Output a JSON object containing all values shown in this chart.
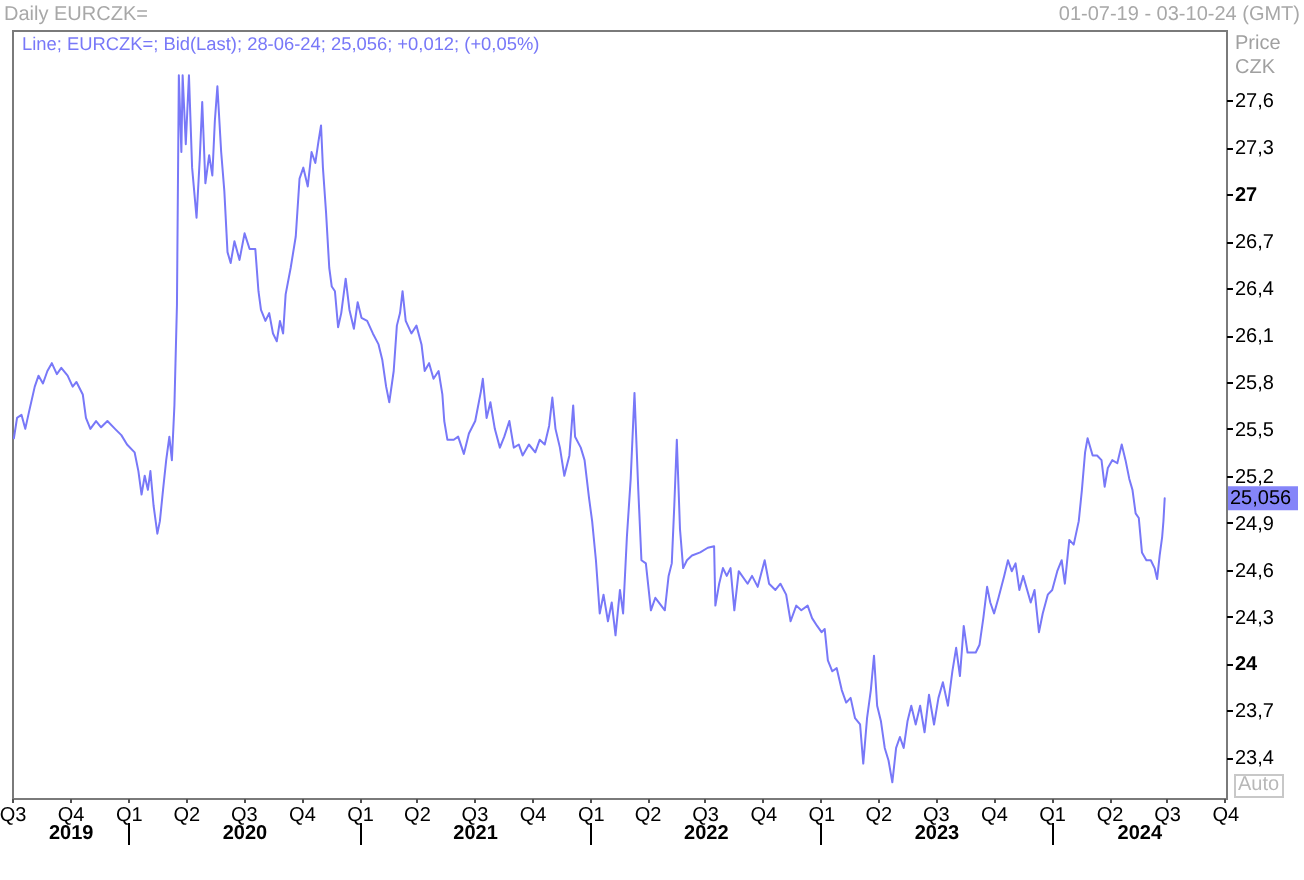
{
  "chart_data": {
    "type": "line",
    "title": "Daily EURCZK=",
    "subtitle": "01-07-19 - 03-10-24 (GMT)",
    "ylabel": "Price CZK",
    "x": [
      "2019-07-04",
      "2019-07-09",
      "2019-07-16",
      "2019-07-22",
      "2019-07-28",
      "2019-08-06",
      "2019-08-12",
      "2019-08-19",
      "2019-08-26",
      "2019-09-02",
      "2019-09-10",
      "2019-09-17",
      "2019-09-27",
      "2019-10-05",
      "2019-10-11",
      "2019-10-21",
      "2019-10-26",
      "2019-11-02",
      "2019-11-11",
      "2019-11-19",
      "2019-11-29",
      "2019-12-11",
      "2019-12-21",
      "2019-12-30",
      "2020-01-11",
      "2020-01-17",
      "2020-01-22",
      "2020-01-27",
      "2020-02-01",
      "2020-02-05",
      "2020-02-10",
      "2020-02-16",
      "2020-02-20",
      "2020-02-25",
      "2020-03-01",
      "2020-03-06",
      "2020-03-10",
      "2020-03-14",
      "2020-03-18",
      "2020-03-21",
      "2020-03-25",
      "2020-03-27",
      "2020-04-01",
      "2020-04-06",
      "2020-04-11",
      "2020-04-18",
      "2020-04-23",
      "2020-04-27",
      "2020-05-02",
      "2020-05-08",
      "2020-05-13",
      "2020-05-17",
      "2020-05-21",
      "2020-05-27",
      "2020-06-01",
      "2020-06-06",
      "2020-06-11",
      "2020-06-17",
      "2020-06-25",
      "2020-07-03",
      "2020-07-11",
      "2020-07-20",
      "2020-07-25",
      "2020-07-29",
      "2020-08-05",
      "2020-08-11",
      "2020-08-17",
      "2020-08-23",
      "2020-08-28",
      "2020-09-02",
      "2020-09-06",
      "2020-09-14",
      "2020-09-22",
      "2020-09-28",
      "2020-10-04",
      "2020-10-11",
      "2020-10-17",
      "2020-10-23",
      "2020-10-28",
      "2020-11-01",
      "2020-11-04",
      "2020-11-09",
      "2020-11-14",
      "2020-11-18",
      "2020-11-23",
      "2020-11-28",
      "2020-12-03",
      "2020-12-10",
      "2020-12-16",
      "2020-12-23",
      "2020-12-29",
      "2021-01-04",
      "2021-01-13",
      "2021-01-22",
      "2021-01-31",
      "2021-02-06",
      "2021-02-12",
      "2021-02-17",
      "2021-02-24",
      "2021-03-01",
      "2021-03-06",
      "2021-03-10",
      "2021-03-15",
      "2021-03-24",
      "2021-04-01",
      "2021-04-09",
      "2021-04-14",
      "2021-04-21",
      "2021-04-28",
      "2021-05-06",
      "2021-05-12",
      "2021-05-15",
      "2021-05-20",
      "2021-05-30",
      "2021-06-06",
      "2021-06-15",
      "2021-06-23",
      "2021-07-03",
      "2021-07-12",
      "2021-07-15",
      "2021-07-21",
      "2021-07-27",
      "2021-08-03",
      "2021-08-11",
      "2021-08-18",
      "2021-08-26",
      "2021-09-02",
      "2021-09-10",
      "2021-09-16",
      "2021-09-26",
      "2021-10-06",
      "2021-10-13",
      "2021-10-21",
      "2021-10-28",
      "2021-11-02",
      "2021-11-07",
      "2021-11-14",
      "2021-11-21",
      "2021-11-29",
      "2021-12-05",
      "2021-12-08",
      "2021-12-17",
      "2021-12-23",
      "2021-12-30",
      "2022-01-04",
      "2022-01-10",
      "2022-01-16",
      "2022-01-22",
      "2022-01-29",
      "2022-02-04",
      "2022-02-10",
      "2022-02-17",
      "2022-02-22",
      "2022-02-28",
      "2022-03-06",
      "2022-03-12",
      "2022-03-18",
      "2022-03-23",
      "2022-03-30",
      "2022-04-07",
      "2022-04-14",
      "2022-04-29",
      "2022-05-05",
      "2022-05-10",
      "2022-05-14",
      "2022-05-18",
      "2022-05-23",
      "2022-05-28",
      "2022-06-03",
      "2022-06-11",
      "2022-06-24",
      "2022-07-06",
      "2022-07-16",
      "2022-07-18",
      "2022-07-24",
      "2022-07-30",
      "2022-08-05",
      "2022-08-11",
      "2022-08-17",
      "2022-08-24",
      "2022-09-07",
      "2022-09-14",
      "2022-09-23",
      "2022-10-04",
      "2022-10-11",
      "2022-10-21",
      "2022-10-29",
      "2022-11-07",
      "2022-11-14",
      "2022-11-23",
      "2022-12-01",
      "2022-12-11",
      "2022-12-18",
      "2022-12-26",
      "2023-01-02",
      "2023-01-07",
      "2023-01-12",
      "2023-01-19",
      "2023-01-26",
      "2023-02-03",
      "2023-02-10",
      "2023-02-17",
      "2023-02-24",
      "2023-03-04",
      "2023-03-09",
      "2023-03-15",
      "2023-03-21",
      "2023-03-26",
      "2023-03-31",
      "2023-04-06",
      "2023-04-12",
      "2023-04-18",
      "2023-04-24",
      "2023-04-30",
      "2023-05-06",
      "2023-05-12",
      "2023-05-18",
      "2023-05-24",
      "2023-05-31",
      "2023-06-07",
      "2023-06-14",
      "2023-06-21",
      "2023-06-29",
      "2023-07-06",
      "2023-07-13",
      "2023-07-21",
      "2023-07-28",
      "2023-08-03",
      "2023-08-09",
      "2023-08-15",
      "2023-08-21",
      "2023-09-03",
      "2023-09-09",
      "2023-09-15",
      "2023-09-21",
      "2023-09-26",
      "2023-10-02",
      "2023-10-09",
      "2023-10-18",
      "2023-10-24",
      "2023-10-30",
      "2023-11-05",
      "2023-11-11",
      "2023-11-17",
      "2023-11-29",
      "2023-12-05",
      "2023-12-12",
      "2023-12-18",
      "2023-12-26",
      "2024-01-02",
      "2024-01-10",
      "2024-01-17",
      "2024-01-22",
      "2024-01-29",
      "2024-02-05",
      "2024-02-13",
      "2024-02-18",
      "2024-02-23",
      "2024-02-27",
      "2024-03-06",
      "2024-03-13",
      "2024-03-20",
      "2024-03-25",
      "2024-03-30",
      "2024-04-06",
      "2024-04-14",
      "2024-04-21",
      "2024-04-27",
      "2024-05-03",
      "2024-05-08",
      "2024-05-13",
      "2024-05-18",
      "2024-05-23",
      "2024-05-30",
      "2024-06-06",
      "2024-06-12",
      "2024-06-16",
      "2024-06-20",
      "2024-06-24",
      "2024-06-26",
      "2024-06-28"
    ],
    "series": [
      {
        "name": "Line; EURCZK=; Bid(Last); 28-06-24; 25,056; +0,012; (+0,05%)",
        "color": "#7878f8",
        "values": [
          25.44,
          25.57,
          25.59,
          25.5,
          25.61,
          25.77,
          25.84,
          25.79,
          25.87,
          25.92,
          25.85,
          25.89,
          25.84,
          25.77,
          25.8,
          25.72,
          25.57,
          25.5,
          25.55,
          25.51,
          25.55,
          25.5,
          25.46,
          25.4,
          25.35,
          25.23,
          25.08,
          25.2,
          25.11,
          25.23,
          25.01,
          24.83,
          24.91,
          25.11,
          25.3,
          25.45,
          25.3,
          25.65,
          26.29,
          27.76,
          27.27,
          27.76,
          27.32,
          27.76,
          27.17,
          26.85,
          27.22,
          27.59,
          27.07,
          27.25,
          27.12,
          27.47,
          27.69,
          27.27,
          27.02,
          26.63,
          26.56,
          26.7,
          26.58,
          26.75,
          26.65,
          26.65,
          26.38,
          26.26,
          26.19,
          26.24,
          26.11,
          26.06,
          26.19,
          26.11,
          26.36,
          26.53,
          26.73,
          27.1,
          27.17,
          27.05,
          27.27,
          27.2,
          27.34,
          27.44,
          27.17,
          26.88,
          26.53,
          26.41,
          26.38,
          26.15,
          26.24,
          26.46,
          26.26,
          26.14,
          26.31,
          26.21,
          26.19,
          26.11,
          26.04,
          25.94,
          25.77,
          25.67,
          25.87,
          26.16,
          26.24,
          26.38,
          26.19,
          26.11,
          26.16,
          26.04,
          25.87,
          25.92,
          25.82,
          25.87,
          25.72,
          25.55,
          25.43,
          25.43,
          25.45,
          25.34,
          25.47,
          25.55,
          25.74,
          25.82,
          25.57,
          25.67,
          25.5,
          25.38,
          25.45,
          25.55,
          25.38,
          25.4,
          25.33,
          25.4,
          25.35,
          25.43,
          25.4,
          25.52,
          25.7,
          25.5,
          25.38,
          25.2,
          25.33,
          25.65,
          25.45,
          25.38,
          25.3,
          25.06,
          24.91,
          24.66,
          24.32,
          24.44,
          24.27,
          24.39,
          24.18,
          24.47,
          24.32,
          24.81,
          25.18,
          25.73,
          25.11,
          24.66,
          24.64,
          24.34,
          24.42,
          24.34,
          24.56,
          24.64,
          25.01,
          25.43,
          24.86,
          24.61,
          24.66,
          24.69,
          24.71,
          24.74,
          24.75,
          24.37,
          24.51,
          24.61,
          24.56,
          24.61,
          24.34,
          24.59,
          24.51,
          24.56,
          24.49,
          24.66,
          24.51,
          24.47,
          24.51,
          24.44,
          24.27,
          24.37,
          24.34,
          24.37,
          24.29,
          24.24,
          24.2,
          24.22,
          24.02,
          23.95,
          23.97,
          23.83,
          23.75,
          23.78,
          23.65,
          23.61,
          23.36,
          23.65,
          23.83,
          24.05,
          23.73,
          23.63,
          23.46,
          23.38,
          23.24,
          23.46,
          23.53,
          23.46,
          23.63,
          23.73,
          23.61,
          23.73,
          23.56,
          23.8,
          23.61,
          23.78,
          23.88,
          23.73,
          23.95,
          24.1,
          23.92,
          24.24,
          24.07,
          24.07,
          24.12,
          24.29,
          24.49,
          24.39,
          24.32,
          24.42,
          24.56,
          24.66,
          24.59,
          24.64,
          24.47,
          24.56,
          24.39,
          24.47,
          24.2,
          24.32,
          24.44,
          24.47,
          24.59,
          24.66,
          24.51,
          24.79,
          24.76,
          24.91,
          25.11,
          25.35,
          25.44,
          25.33,
          25.33,
          25.3,
          25.13,
          25.25,
          25.3,
          25.28,
          25.4,
          25.3,
          25.18,
          25.11,
          24.96,
          24.93,
          24.71,
          24.66,
          24.66,
          24.61,
          24.54,
          24.69,
          24.81,
          24.91,
          25.056
        ]
      }
    ],
    "xlim": [
      "2019-07-01",
      "2024-10-03"
    ],
    "xticks": [
      {
        "value": "2019-07-01",
        "label": "Q3"
      },
      {
        "value": "2019-10-01",
        "label": "Q4"
      },
      {
        "value": "2020-01-01",
        "label": "Q1"
      },
      {
        "value": "2020-04-01",
        "label": "Q2"
      },
      {
        "value": "2020-07-01",
        "label": "Q3"
      },
      {
        "value": "2020-10-01",
        "label": "Q4"
      },
      {
        "value": "2021-01-01",
        "label": "Q1"
      },
      {
        "value": "2021-04-01",
        "label": "Q2"
      },
      {
        "value": "2021-07-01",
        "label": "Q3"
      },
      {
        "value": "2021-10-01",
        "label": "Q4"
      },
      {
        "value": "2022-01-01",
        "label": "Q1"
      },
      {
        "value": "2022-04-01",
        "label": "Q2"
      },
      {
        "value": "2022-07-01",
        "label": "Q3"
      },
      {
        "value": "2022-10-01",
        "label": "Q4"
      },
      {
        "value": "2023-01-01",
        "label": "Q1"
      },
      {
        "value": "2023-04-01",
        "label": "Q2"
      },
      {
        "value": "2023-07-01",
        "label": "Q3"
      },
      {
        "value": "2023-10-01",
        "label": "Q4"
      },
      {
        "value": "2024-01-01",
        "label": "Q1"
      },
      {
        "value": "2024-04-01",
        "label": "Q2"
      },
      {
        "value": "2024-07-01",
        "label": "Q3"
      },
      {
        "value": "2024-10-01",
        "label": "Q4"
      }
    ],
    "x2lim": [
      "2019-07-01",
      "2024-10-03"
    ],
    "x2ticks": [
      {
        "value": "2019-10-01",
        "label": "2019"
      },
      {
        "value": "2020-01-01",
        "label": null
      },
      {
        "value": "2020-07-02",
        "label": "2020"
      },
      {
        "value": "2021-01-01",
        "label": null
      },
      {
        "value": "2021-07-02",
        "label": "2021"
      },
      {
        "value": "2022-01-01",
        "label": null
      },
      {
        "value": "2022-07-02",
        "label": "2022"
      },
      {
        "value": "2023-01-01",
        "label": null
      },
      {
        "value": "2023-07-02",
        "label": "2023"
      },
      {
        "value": "2024-01-01",
        "label": null
      },
      {
        "value": "2024-05-18",
        "label": "2024"
      }
    ],
    "ylim": [
      23.14,
      28.05
    ],
    "yticks": [
      {
        "value": 23.4,
        "label": "23,4"
      },
      {
        "value": 23.7,
        "label": "23,7"
      },
      24,
      {
        "value": 24.3,
        "label": "24,3"
      },
      {
        "value": 24.6,
        "label": "24,6"
      },
      {
        "value": 24.9,
        "label": "24,9"
      },
      {
        "value": 25.2,
        "label": "25,2"
      },
      {
        "value": 25.5,
        "label": "25,5"
      },
      {
        "value": 25.8,
        "label": "25,8"
      },
      {
        "value": 26.1,
        "label": "26,1"
      },
      {
        "value": 26.4,
        "label": "26,4"
      },
      {
        "value": 26.7,
        "label": "26,7"
      },
      27,
      {
        "value": 27.3,
        "label": "27,3"
      },
      {
        "value": 27.6,
        "label": "27,6"
      }
    ],
    "legend": "top left",
    "annotations": [
      {
        "text": "25,056",
        "y": 25.056
      },
      "Auto"
    ]
  }
}
